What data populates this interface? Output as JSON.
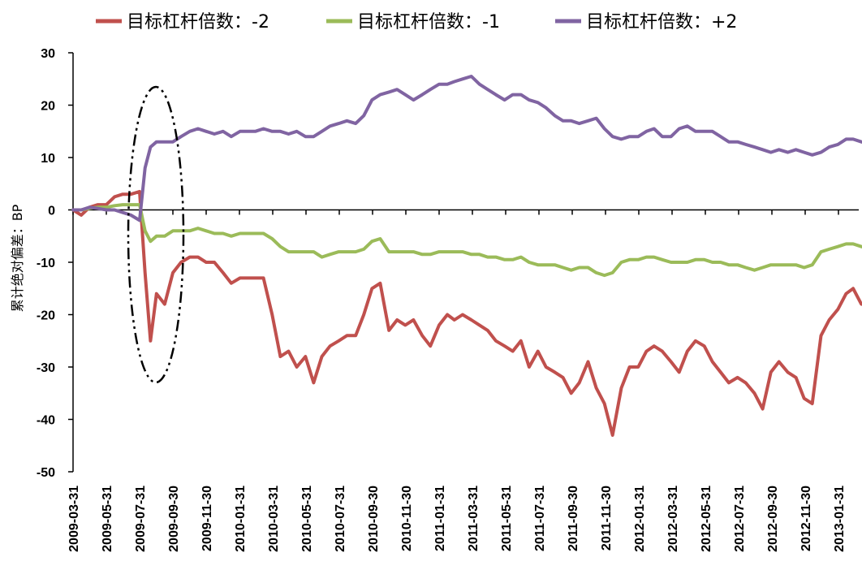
{
  "chart_data": {
    "type": "line",
    "title": "",
    "xlabel": "",
    "ylabel": "累计绝对偏差：BP",
    "ylim": [
      -50,
      30
    ],
    "yticks": [
      -50,
      -40,
      -30,
      -20,
      -10,
      0,
      10,
      20,
      30
    ],
    "grid": false,
    "legend_position": "top",
    "x_tick_labels": [
      "2009-03-31",
      "2009-05-31",
      "2009-07-31",
      "2009-09-30",
      "2009-11-30",
      "2010-01-31",
      "2010-03-31",
      "2010-05-31",
      "2010-07-31",
      "2010-09-30",
      "2010-11-30",
      "2011-01-31",
      "2011-03-31",
      "2011-05-31",
      "2011-07-31",
      "2011-09-30",
      "2011-11-30",
      "2012-01-31",
      "2012-03-31",
      "2012-05-31",
      "2012-07-31",
      "2012-09-30",
      "2012-11-30",
      "2013-01-31"
    ],
    "x": [
      "2009-03-31",
      "2009-04-15",
      "2009-04-30",
      "2009-05-15",
      "2009-05-31",
      "2009-06-15",
      "2009-06-30",
      "2009-07-15",
      "2009-07-31",
      "2009-08-10",
      "2009-08-20",
      "2009-08-31",
      "2009-09-15",
      "2009-09-30",
      "2009-10-15",
      "2009-10-31",
      "2009-11-15",
      "2009-11-30",
      "2009-12-15",
      "2009-12-31",
      "2010-01-15",
      "2010-01-31",
      "2010-02-15",
      "2010-02-28",
      "2010-03-15",
      "2010-03-31",
      "2010-04-15",
      "2010-04-30",
      "2010-05-15",
      "2010-05-31",
      "2010-06-15",
      "2010-06-30",
      "2010-07-15",
      "2010-07-31",
      "2010-08-15",
      "2010-08-31",
      "2010-09-15",
      "2010-09-30",
      "2010-10-15",
      "2010-10-31",
      "2010-11-15",
      "2010-11-30",
      "2010-12-15",
      "2010-12-31",
      "2011-01-15",
      "2011-01-31",
      "2011-02-15",
      "2011-02-28",
      "2011-03-15",
      "2011-03-31",
      "2011-04-15",
      "2011-04-30",
      "2011-05-15",
      "2011-05-31",
      "2011-06-15",
      "2011-06-30",
      "2011-07-15",
      "2011-07-31",
      "2011-08-15",
      "2011-08-31",
      "2011-09-15",
      "2011-09-30",
      "2011-10-15",
      "2011-10-31",
      "2011-11-15",
      "2011-11-30",
      "2011-12-15",
      "2011-12-31",
      "2012-01-15",
      "2012-01-31",
      "2012-02-15",
      "2012-02-29",
      "2012-03-15",
      "2012-03-31",
      "2012-04-15",
      "2012-04-30",
      "2012-05-15",
      "2012-05-31",
      "2012-06-15",
      "2012-06-30",
      "2012-07-15",
      "2012-07-31",
      "2012-08-15",
      "2012-08-31",
      "2012-09-15",
      "2012-09-30",
      "2012-10-15",
      "2012-10-31",
      "2012-11-15",
      "2012-11-30",
      "2012-12-15",
      "2012-12-31",
      "2013-01-15",
      "2013-01-31",
      "2013-02-15",
      "2013-02-28",
      "2013-03-15",
      "2013-03-31"
    ],
    "series": [
      {
        "name": "目标杠杆倍数：-2",
        "color": "#c0504d",
        "values": [
          0,
          -1,
          0.5,
          1,
          1,
          2.5,
          3,
          3,
          3.5,
          -12,
          -25,
          -16,
          -18,
          -12,
          -10,
          -9,
          -9,
          -10,
          -10,
          -12,
          -14,
          -13,
          -13,
          -13,
          -13,
          -20,
          -28,
          -27,
          -30,
          -28,
          -33,
          -28,
          -26,
          -25,
          -24,
          -24,
          -20,
          -15,
          -14,
          -23,
          -21,
          -22,
          -21,
          -24,
          -26,
          -22,
          -20,
          -21,
          -20,
          -21,
          -22,
          -23,
          -25,
          -26,
          -27,
          -25,
          -30,
          -27,
          -30,
          -31,
          -32,
          -35,
          -33,
          -29,
          -34,
          -37,
          -43,
          -34,
          -30,
          -30,
          -27,
          -26,
          -27,
          -29,
          -31,
          -27,
          -25,
          -26,
          -29,
          -31,
          -33,
          -32,
          -33,
          -35,
          -38,
          -31,
          -29,
          -31,
          -32,
          -36,
          -37,
          -24,
          -21,
          -19,
          -16,
          -15,
          -18,
          -18
        ]
      },
      {
        "name": "目标杠杆倍数：-1",
        "color": "#9bbb59",
        "values": [
          0,
          0,
          0.3,
          0.5,
          0.5,
          0.8,
          1,
          1,
          1,
          -4,
          -6,
          -5,
          -5,
          -4,
          -4,
          -4,
          -3.5,
          -4,
          -4.5,
          -4.5,
          -5,
          -4.5,
          -4.5,
          -4.5,
          -4.5,
          -5.5,
          -7,
          -8,
          -8,
          -8,
          -8,
          -9,
          -8.5,
          -8,
          -8,
          -8,
          -7.5,
          -6,
          -5.5,
          -8,
          -8,
          -8,
          -8,
          -8.5,
          -8.5,
          -8,
          -8,
          -8,
          -8,
          -8.5,
          -8.5,
          -9,
          -9,
          -9.5,
          -9.5,
          -9,
          -10,
          -10.5,
          -10.5,
          -10.5,
          -11,
          -11.5,
          -11,
          -11,
          -12,
          -12.5,
          -12,
          -10,
          -9.5,
          -9.5,
          -9,
          -9,
          -9.5,
          -10,
          -10,
          -10,
          -9.5,
          -9.5,
          -10,
          -10,
          -10.5,
          -10.5,
          -11,
          -11.5,
          -11,
          -10.5,
          -10.5,
          -10.5,
          -10.5,
          -11,
          -10.5,
          -8,
          -7.5,
          -7,
          -6.5,
          -6.5,
          -7,
          -7.5
        ]
      },
      {
        "name": "目标杠杆倍数：+2",
        "color": "#8064a2",
        "values": [
          0,
          0,
          0.5,
          0.3,
          0,
          0,
          -0.5,
          -1,
          -2,
          8,
          12,
          13,
          13,
          13,
          14,
          15,
          15.5,
          15,
          14.5,
          15,
          14,
          15,
          15,
          15,
          15.5,
          15,
          15,
          14.5,
          15,
          14,
          14,
          15,
          16,
          16.5,
          17,
          16.5,
          18,
          21,
          22,
          22.5,
          23,
          22,
          21,
          22,
          23,
          24,
          24,
          24.5,
          25,
          25.5,
          24,
          23,
          22,
          21,
          22,
          22,
          21,
          20.5,
          19.5,
          18,
          17,
          17,
          16.5,
          17,
          17.5,
          15.5,
          14,
          13.5,
          14,
          14,
          15,
          15.5,
          14,
          14,
          15.5,
          16,
          15,
          15,
          15,
          14,
          13,
          13,
          12.5,
          12,
          11.5,
          11,
          11.5,
          11,
          11.5,
          11,
          10.5,
          11,
          12,
          12.5,
          13.5,
          13.5,
          13,
          12.5
        ]
      }
    ]
  }
}
